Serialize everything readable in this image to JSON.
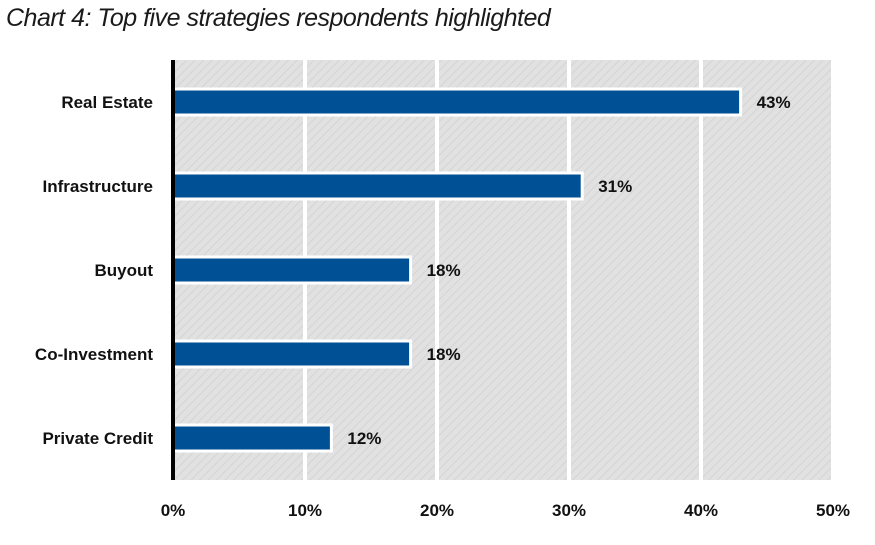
{
  "chart_data": {
    "type": "bar",
    "orientation": "horizontal",
    "title": "Chart 4: Top five strategies respondents highlighted",
    "categories": [
      "Real Estate",
      "Infrastructure",
      "Buyout",
      "Co-Investment",
      "Private Credit"
    ],
    "values": [
      43,
      31,
      18,
      18,
      12
    ],
    "value_labels": [
      "43%",
      "31%",
      "18%",
      "18%",
      "12%"
    ],
    "xlim": [
      0,
      50
    ],
    "x_ticks": [
      0,
      10,
      20,
      30,
      40,
      50
    ],
    "x_tick_labels": [
      "0%",
      "10%",
      "20%",
      "30%",
      "40%",
      "50%"
    ],
    "xlabel": "",
    "ylabel": "",
    "grid": true,
    "legend": "none",
    "colors": {
      "bar": "#005095",
      "plot_background": "#e3e3e3",
      "gridline": "#ffffff",
      "axis": "#000000"
    }
  }
}
